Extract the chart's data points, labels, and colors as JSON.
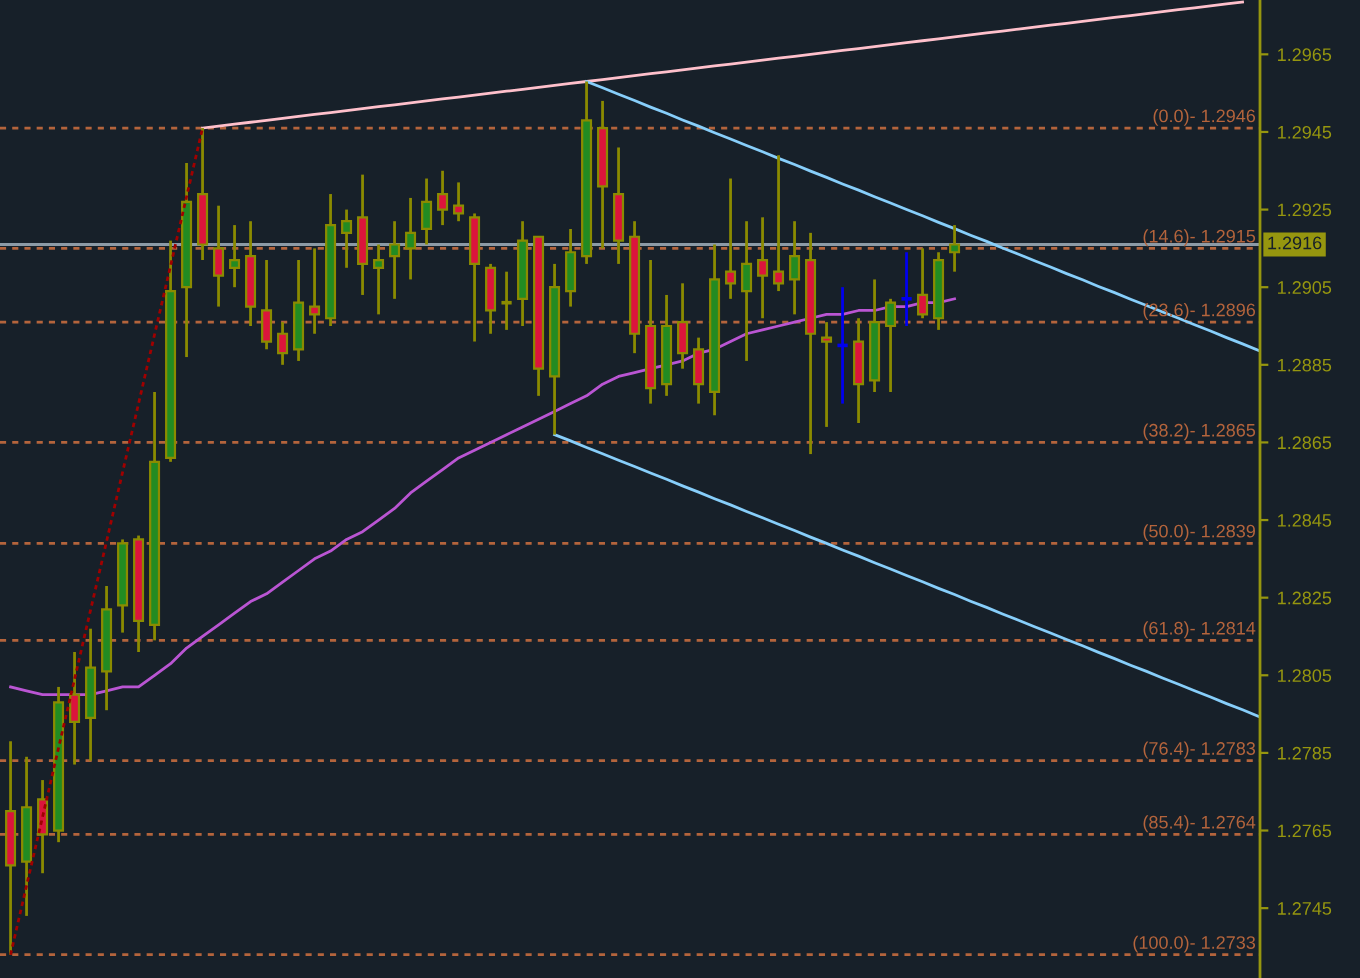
{
  "chart_data": {
    "type": "candlestick",
    "categories": [
      null,
      null,
      null,
      null,
      null,
      null,
      null,
      null,
      null,
      null,
      null,
      null,
      null,
      null,
      null,
      null,
      null,
      null,
      null,
      null,
      null,
      null,
      null,
      null,
      null,
      null,
      null,
      null,
      null,
      null,
      null,
      null,
      null,
      null,
      null,
      null,
      null,
      null,
      null,
      null,
      null,
      null,
      null,
      null,
      null,
      null,
      null,
      null,
      null,
      null,
      null,
      null,
      null,
      null,
      null,
      null,
      null,
      null,
      null,
      null,
      null,
      null,
      null,
      null,
      null,
      null,
      null,
      null,
      null,
      null,
      null,
      null,
      null,
      null,
      null,
      null,
      null,
      null,
      null
    ],
    "ohlc": [
      [
        1.277,
        1.2788,
        1.2733,
        1.2756
      ],
      [
        1.2757,
        1.2784,
        1.2743,
        1.2771
      ],
      [
        1.2773,
        1.2778,
        1.2754,
        1.2764
      ],
      [
        1.2765,
        1.2802,
        1.2762,
        1.2798
      ],
      [
        1.28,
        1.2811,
        1.2782,
        1.2793
      ],
      [
        1.2794,
        1.2817,
        1.2783,
        1.2807
      ],
      [
        1.2806,
        1.2828,
        1.2796,
        1.2822
      ],
      [
        1.2823,
        1.284,
        1.2816,
        1.2839
      ],
      [
        1.284,
        1.2841,
        1.2811,
        1.2819
      ],
      [
        1.2818,
        1.2878,
        1.2814,
        1.286
      ],
      [
        1.2861,
        1.2917,
        1.286,
        1.2904
      ],
      [
        1.2905,
        1.2937,
        1.2887,
        1.2927
      ],
      [
        1.2929,
        1.2946,
        1.2912,
        1.2916
      ],
      [
        1.2915,
        1.2926,
        1.29,
        1.2908
      ],
      [
        1.291,
        1.2921,
        1.2905,
        1.2912
      ],
      [
        1.2913,
        1.2922,
        1.2895,
        1.29
      ],
      [
        1.2899,
        1.2912,
        1.2889,
        1.2891
      ],
      [
        1.2893,
        1.2896,
        1.2885,
        1.2888
      ],
      [
        1.2889,
        1.2912,
        1.2886,
        1.2901
      ],
      [
        1.29,
        1.2915,
        1.2893,
        1.2898
      ],
      [
        1.2897,
        1.2929,
        1.2895,
        1.2921
      ],
      [
        1.2919,
        1.2925,
        1.291,
        1.2922
      ],
      [
        1.2923,
        1.2934,
        1.2903,
        1.2911
      ],
      [
        1.291,
        1.2916,
        1.2898,
        1.2912
      ],
      [
        1.2913,
        1.2922,
        1.2902,
        1.2916
      ],
      [
        1.2915,
        1.2928,
        1.2907,
        1.2919
      ],
      [
        1.292,
        1.2933,
        1.2916,
        1.2927
      ],
      [
        1.2929,
        1.2935,
        1.2921,
        1.2925
      ],
      [
        1.2926,
        1.2932,
        1.2922,
        1.2924
      ],
      [
        1.2923,
        1.2924,
        1.2891,
        1.2911
      ],
      [
        1.291,
        1.2911,
        1.2893,
        1.2899
      ],
      [
        1.2901,
        1.2909,
        1.2894,
        1.2901
      ],
      [
        1.2902,
        1.2922,
        1.2895,
        1.2917
      ],
      [
        1.2918,
        1.2918,
        1.2877,
        1.2884
      ],
      [
        1.2882,
        1.2911,
        1.2867,
        1.2905
      ],
      [
        1.2904,
        1.292,
        1.29,
        1.2914
      ],
      [
        1.2913,
        1.2958,
        1.2911,
        1.2948
      ],
      [
        1.2946,
        1.2953,
        1.2915,
        1.2931
      ],
      [
        1.2929,
        1.2941,
        1.2911,
        1.2917
      ],
      [
        1.2918,
        1.2922,
        1.2888,
        1.2893
      ],
      [
        1.2895,
        1.2912,
        1.2875,
        1.2879
      ],
      [
        1.288,
        1.2903,
        1.2877,
        1.2895
      ],
      [
        1.2896,
        1.2906,
        1.2884,
        1.2888
      ],
      [
        1.2889,
        1.2892,
        1.2875,
        1.288
      ],
      [
        1.2878,
        1.2916,
        1.2872,
        1.2907
      ],
      [
        1.2909,
        1.2933,
        1.2902,
        1.2906
      ],
      [
        1.2904,
        1.2922,
        1.2886,
        1.2911
      ],
      [
        1.2912,
        1.2923,
        1.2897,
        1.2908
      ],
      [
        1.2909,
        1.2939,
        1.2904,
        1.2906
      ],
      [
        1.2907,
        1.2922,
        1.2898,
        1.2913
      ],
      [
        1.2912,
        1.2919,
        1.2862,
        1.2893
      ],
      [
        1.2892,
        1.2896,
        1.2869,
        1.2891
      ],
      [
        1.289,
        1.2905,
        1.2875,
        1.289
      ],
      [
        1.2891,
        1.2897,
        1.287,
        1.288
      ],
      [
        1.2881,
        1.2907,
        1.2878,
        1.2896
      ],
      [
        1.2895,
        1.2902,
        1.2878,
        1.2901
      ],
      [
        1.2902,
        1.2914,
        1.2895,
        1.2902
      ],
      [
        1.2903,
        1.2915,
        1.2897,
        1.2898
      ],
      [
        1.2897,
        1.2914,
        1.2894,
        1.2912
      ],
      [
        1.2914,
        1.2921,
        1.2909,
        1.2916
      ],
      null,
      null,
      null,
      null,
      null,
      null,
      null,
      null,
      null,
      null,
      null,
      null,
      null,
      null,
      null,
      null,
      null,
      null,
      null
    ],
    "colors": [
      "#dc143c",
      "#228b22",
      "#dc143c",
      "#228b22",
      "#dc143c",
      "#228b22",
      "#228b22",
      "#228b22",
      "#dc143c",
      "#228b22",
      "#228b22",
      "#228b22",
      "#dc143c",
      "#dc143c",
      "#228b22",
      "#dc143c",
      "#dc143c",
      "#dc143c",
      "#228b22",
      "#dc143c",
      "#228b22",
      "#228b22",
      "#dc143c",
      "#228b22",
      "#228b22",
      "#228b22",
      "#228b22",
      "#dc143c",
      "#dc143c",
      "#dc143c",
      "#dc143c",
      "#8b8b00",
      "#228b22",
      "#dc143c",
      "#228b22",
      "#228b22",
      "#228b22",
      "#dc143c",
      "#dc143c",
      "#dc143c",
      "#dc143c",
      "#228b22",
      "#dc143c",
      "#dc143c",
      "#228b22",
      "#dc143c",
      "#228b22",
      "#dc143c",
      "#dc143c",
      "#228b22",
      "#dc143c",
      "#dc143c",
      "#0000ee",
      "#dc143c",
      "#228b22",
      "#228b22",
      "#0000ee",
      "#dc143c",
      "#228b22",
      "#228b22",
      null,
      null,
      null,
      null,
      null,
      null,
      null,
      null,
      null,
      null,
      null,
      null,
      null,
      null,
      null,
      null,
      null,
      null,
      null
    ],
    "series": [
      {
        "type": "line",
        "color": "#ba55d3",
        "values": [
          1.2802,
          1.2801,
          1.28,
          1.28,
          1.28,
          1.28,
          1.2801,
          1.2802,
          1.2802,
          1.2805,
          1.2808,
          1.2812,
          1.2815,
          1.2818,
          1.2821,
          1.2824,
          1.2826,
          1.2829,
          1.2832,
          1.2835,
          1.2837,
          1.284,
          1.2842,
          1.2845,
          1.2848,
          1.2852,
          1.2855,
          1.2858,
          1.2861,
          1.2863,
          1.2865,
          1.2867,
          1.2869,
          1.2871,
          1.2873,
          1.2875,
          1.2877,
          1.288,
          1.2882,
          1.2883,
          1.2884,
          1.2885,
          1.2886,
          1.2888,
          1.2889,
          1.2891,
          1.2893,
          1.2894,
          1.2895,
          1.2896,
          1.2897,
          1.2898,
          1.2898,
          1.2899,
          1.2899,
          1.29,
          1.29,
          1.2901,
          1.2901,
          1.2902,
          null,
          null,
          null,
          null,
          null,
          null,
          null,
          null,
          null,
          null,
          null,
          null,
          null,
          null,
          null,
          null,
          null,
          null,
          null
        ]
      },
      {
        "type": "line",
        "color": "#ffc0cb",
        "values": [
          null,
          null,
          null,
          null,
          null,
          null,
          null,
          null,
          null,
          null,
          null,
          null,
          1.2946,
          1.29465,
          1.2947,
          1.29475,
          1.2948,
          1.29485,
          1.2949,
          1.29495,
          1.295,
          1.29505,
          1.2951,
          1.29515,
          1.2952,
          1.29525,
          1.2953,
          1.29535,
          1.2954,
          1.29545,
          1.2955,
          1.29555,
          1.2956,
          1.29565,
          1.2957,
          1.29575,
          1.2958,
          1.29585,
          1.2959,
          1.29595,
          1.296,
          1.29605,
          1.2961,
          1.29615,
          1.2962,
          1.29625,
          1.2963,
          1.29635,
          1.2964,
          1.29645,
          1.2965,
          1.29655,
          1.2966,
          1.29665,
          1.2967,
          1.29675,
          1.2968,
          1.29685,
          1.2969,
          1.29695,
          1.297,
          1.29705,
          1.2971,
          1.29715,
          1.2972,
          1.29725,
          1.2973,
          1.29735,
          1.2974,
          1.29745,
          1.2975,
          1.29755,
          1.2976,
          1.29765,
          1.2977,
          1.29775,
          1.2978,
          1.29785,
          null
        ]
      },
      {
        "type": "line",
        "color": "#87cefa",
        "values": [
          null,
          null,
          null,
          null,
          null,
          null,
          null,
          null,
          null,
          null,
          null,
          null,
          null,
          null,
          null,
          null,
          null,
          null,
          null,
          null,
          null,
          null,
          null,
          null,
          null,
          null,
          null,
          null,
          null,
          null,
          null,
          null,
          null,
          null,
          null,
          null,
          1.2958,
          1.29564,
          1.29547,
          1.29531,
          1.29514,
          1.29498,
          1.29481,
          1.29465,
          1.29448,
          1.29432,
          1.29415,
          1.29399,
          1.29382,
          1.29366,
          1.29349,
          1.29333,
          1.29316,
          1.293,
          1.29283,
          1.29267,
          1.2925,
          1.29234,
          1.29217,
          1.29201,
          1.29184,
          1.29168,
          1.29151,
          1.29135,
          1.29118,
          1.29102,
          1.29085,
          1.29069,
          1.29052,
          1.29036,
          1.29019,
          1.29003,
          1.28986,
          1.2897,
          1.28953,
          1.28937,
          1.2892,
          1.28904,
          1.28887
        ]
      },
      {
        "type": "line",
        "color": "#87cefa",
        "values": [
          null,
          null,
          null,
          null,
          null,
          null,
          null,
          null,
          null,
          null,
          null,
          null,
          null,
          null,
          null,
          null,
          null,
          null,
          null,
          null,
          null,
          null,
          null,
          null,
          null,
          null,
          null,
          null,
          null,
          null,
          null,
          null,
          null,
          null,
          1.2867,
          1.28654,
          1.28637,
          1.28621,
          1.28604,
          1.28588,
          1.28571,
          1.28555,
          1.28538,
          1.28522,
          1.28505,
          1.28489,
          1.28472,
          1.28456,
          1.28439,
          1.28423,
          1.28406,
          1.2839,
          1.28373,
          1.28357,
          1.2834,
          1.28324,
          1.28307,
          1.28291,
          1.28274,
          1.28258,
          1.28241,
          1.28225,
          1.28208,
          1.28192,
          1.28175,
          1.28159,
          1.28142,
          1.28126,
          1.28109,
          1.28093,
          1.28076,
          1.2806,
          1.28043,
          1.28027,
          1.2801,
          1.27994,
          1.27977,
          1.27961,
          1.27944
        ]
      },
      {
        "type": "line",
        "color": "#a00000",
        "line_style": "dotted",
        "values": [
          1.2733,
          1.27508,
          1.27685,
          1.27863,
          1.2804,
          1.28218,
          1.28395,
          1.28573,
          1.2875,
          1.28928,
          1.29105,
          1.29283,
          1.2946,
          null,
          null,
          null,
          null,
          null,
          null,
          null,
          null,
          null,
          null,
          null,
          null,
          null,
          null,
          null,
          null,
          null,
          null,
          null,
          null,
          null,
          null,
          null,
          null,
          null,
          null,
          null,
          null,
          null,
          null,
          null,
          null,
          null,
          null,
          null,
          null,
          null,
          null,
          null,
          null,
          null,
          null,
          null,
          null,
          null,
          null,
          null,
          null,
          null,
          null,
          null,
          null,
          null,
          null,
          null,
          null,
          null,
          null,
          null,
          null,
          null,
          null,
          null,
          null,
          null,
          null
        ]
      }
    ],
    "ylim": [
      1.2727,
      1.2979
    ],
    "yticks": [
      1.2745,
      1.2765,
      1.2785,
      1.2805,
      1.2825,
      1.2845,
      1.2865,
      1.2885,
      1.2905,
      1.2925,
      1.2945,
      1.2965
    ],
    "tick_labels": "y",
    "ref_lines": [
      {
        "axis": "y",
        "value": 1.2946,
        "color": "#b4643c",
        "line_style": "dashed"
      },
      {
        "axis": "y",
        "value": 1.2915,
        "color": "#b4643c",
        "line_style": "dashed"
      },
      {
        "axis": "y",
        "value": 1.2896,
        "color": "#b4643c",
        "line_style": "dashed"
      },
      {
        "axis": "y",
        "value": 1.2865,
        "color": "#b4643c",
        "line_style": "dashed"
      },
      {
        "axis": "y",
        "value": 1.2839,
        "color": "#b4643c",
        "line_style": "dashed"
      },
      {
        "axis": "y",
        "value": 1.2814,
        "color": "#b4643c",
        "line_style": "dashed"
      },
      {
        "axis": "y",
        "value": 1.2783,
        "color": "#b4643c",
        "line_style": "dashed"
      },
      {
        "axis": "y",
        "value": 1.2764,
        "color": "#b4643c",
        "line_style": "dashed"
      },
      {
        "axis": "y",
        "value": 1.2733,
        "color": "#b4643c",
        "line_style": "dashed"
      },
      {
        "axis": "y",
        "value": 1.2916,
        "label": "1.2916",
        "color": "#8c9aa6",
        "line_style": "solid"
      }
    ],
    "annotations": [
      {
        "text": "(0.0)- 1.2946",
        "y": 1.2946
      },
      {
        "text": "(14.6)- 1.2915",
        "y": 1.2915
      },
      {
        "text": "(23.6)- 1.2896",
        "y": 1.2896
      },
      {
        "text": "(38.2)- 1.2865",
        "y": 1.2865
      },
      {
        "text": "(50.0)- 1.2839",
        "y": 1.2839
      },
      {
        "text": "(61.8)- 1.2814",
        "y": 1.2814
      },
      {
        "text": "(76.4)- 1.2783",
        "y": 1.2783
      },
      {
        "text": "(85.4)- 1.2764",
        "y": 1.2764
      },
      {
        "text": "(100.0)- 1.2733",
        "y": 1.2733
      }
    ]
  }
}
